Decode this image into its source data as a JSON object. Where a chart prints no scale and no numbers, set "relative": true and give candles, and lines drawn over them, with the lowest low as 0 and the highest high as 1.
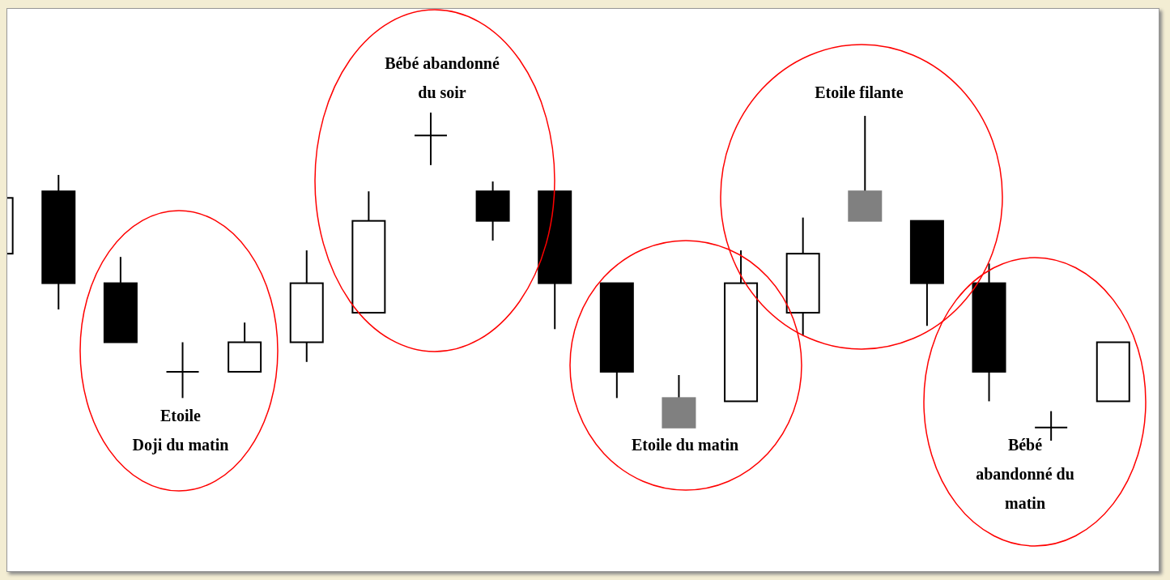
{
  "chart_data": {
    "type": "candlestick",
    "relative": true,
    "categories": [
      null,
      null,
      null,
      null,
      null,
      null,
      null,
      null,
      null,
      null,
      null,
      null,
      null,
      null,
      null,
      null,
      null,
      null,
      null
    ],
    "ohlc": [
      [
        0.57,
        0.74,
        0.57,
        0.74
      ],
      [
        0.76,
        0.81,
        0.4,
        0.48
      ],
      [
        0.48,
        0.56,
        0.3,
        0.3
      ],
      [
        0.21,
        0.3,
        0.13,
        0.21
      ],
      [
        0.21,
        0.36,
        0.21,
        0.3
      ],
      [
        0.3,
        0.58,
        0.24,
        0.48
      ],
      [
        0.39,
        0.76,
        0.39,
        0.67
      ],
      [
        0.93,
        1.0,
        0.84,
        0.93
      ],
      [
        0.76,
        0.79,
        0.61,
        0.67
      ],
      [
        0.76,
        0.76,
        0.34,
        0.48
      ],
      [
        0.48,
        0.48,
        0.13,
        0.21
      ],
      [
        0.13,
        0.2,
        0.04,
        0.04
      ],
      [
        0.12,
        0.58,
        0.12,
        0.48
      ],
      [
        0.39,
        0.68,
        0.32,
        0.57
      ],
      [
        0.67,
        0.99,
        0.67,
        0.76
      ],
      [
        0.67,
        0.67,
        0.35,
        0.48
      ],
      [
        0.48,
        0.54,
        0.12,
        0.21
      ],
      [
        0.04,
        0.09,
        0.0,
        0.04
      ],
      [
        0.12,
        0.3,
        0.12,
        0.3
      ]
    ],
    "colors": [
      "#ffffff",
      "#000000",
      "#000000",
      "#000000",
      "#ffffff",
      "#ffffff",
      "#ffffff",
      "#000000",
      "#000000",
      "#000000",
      "#000000",
      "#808080",
      "#ffffff",
      "#ffffff",
      "#808080",
      "#000000",
      "#000000",
      "#000000",
      "#ffffff"
    ],
    "annotations": [
      "Etoile\nDoji du matin",
      "Bébé abandonné\ndu soir",
      "Etoile du matin",
      "Etoile filante",
      "Bébé\nabandonné du\nmatin"
    ]
  }
}
